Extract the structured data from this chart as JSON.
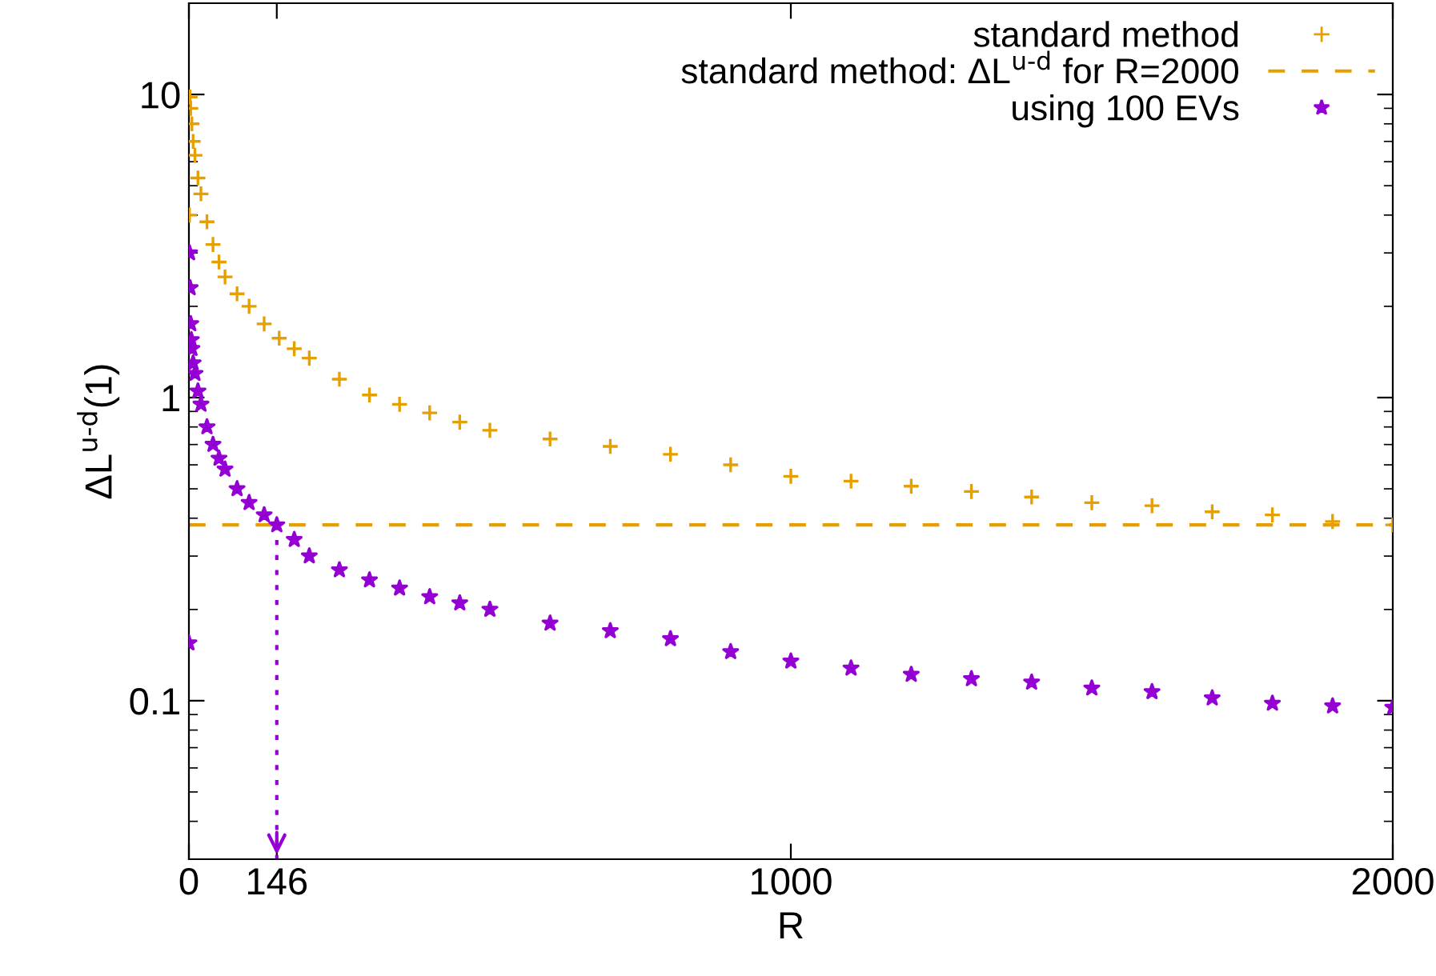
{
  "chart_data": {
    "type": "scatter",
    "xlabel": "R",
    "ylabel": "ΔL$^{u-d}$(1)",
    "xlim": [
      0,
      2000
    ],
    "xticks": [
      0,
      146,
      1000,
      2000
    ],
    "ylim": [
      0.03,
      20
    ],
    "yticks": [
      0.1,
      1,
      10
    ],
    "log": "y",
    "grid": false,
    "legend": "top right",
    "series": [
      {
        "name": "standard method",
        "color": "#e69f00",
        "marker": "cross",
        "x": [
          1,
          2,
          3,
          5,
          7,
          10,
          15,
          20,
          30,
          40,
          50,
          60,
          80,
          100,
          125,
          150,
          175,
          200,
          250,
          300,
          350,
          400,
          450,
          500,
          600,
          700,
          800,
          900,
          1000,
          1100,
          1200,
          1300,
          1400,
          1500,
          1600,
          1700,
          1800,
          1900,
          2000
        ],
        "values": [
          4.0,
          9.8,
          9.0,
          8.0,
          7.0,
          6.3,
          5.3,
          4.7,
          3.8,
          3.2,
          2.8,
          2.5,
          2.2,
          2.0,
          1.75,
          1.57,
          1.45,
          1.35,
          1.15,
          1.02,
          0.95,
          0.89,
          0.83,
          0.78,
          0.73,
          0.69,
          0.65,
          0.6,
          0.55,
          0.53,
          0.51,
          0.49,
          0.47,
          0.45,
          0.44,
          0.42,
          0.41,
          0.39,
          0.38
        ]
      },
      {
        "name": "standard method: ΔL$^{u-d}$ for R=2000",
        "type": "line",
        "color": "#e69f00",
        "marker": "none",
        "line_style": "dashed",
        "x": [
          0,
          2000
        ],
        "values": [
          0.38,
          0.38
        ]
      },
      {
        "name": "using 100 EVs",
        "color": "#9400d3",
        "marker": "star",
        "x": [
          0,
          1,
          2,
          3,
          4,
          5,
          7,
          10,
          15,
          20,
          30,
          40,
          50,
          60,
          80,
          100,
          125,
          146,
          175,
          200,
          250,
          300,
          350,
          400,
          450,
          500,
          600,
          700,
          800,
          900,
          1000,
          1100,
          1200,
          1300,
          1400,
          1500,
          1600,
          1700,
          1800,
          1900,
          2000
        ],
        "values": [
          0.155,
          3.0,
          2.3,
          1.75,
          1.55,
          1.45,
          1.3,
          1.2,
          1.05,
          0.95,
          0.8,
          0.7,
          0.63,
          0.58,
          0.5,
          0.45,
          0.41,
          0.38,
          0.34,
          0.3,
          0.27,
          0.25,
          0.235,
          0.22,
          0.21,
          0.2,
          0.18,
          0.17,
          0.16,
          0.145,
          0.135,
          0.128,
          0.122,
          0.118,
          0.115,
          0.11,
          0.107,
          0.102,
          0.098,
          0.096,
          0.095
        ]
      }
    ],
    "ref_lines": [
      {
        "axis": "x",
        "value": 146,
        "label": null,
        "color": "#9400d3",
        "line_style": "dotted"
      }
    ]
  }
}
